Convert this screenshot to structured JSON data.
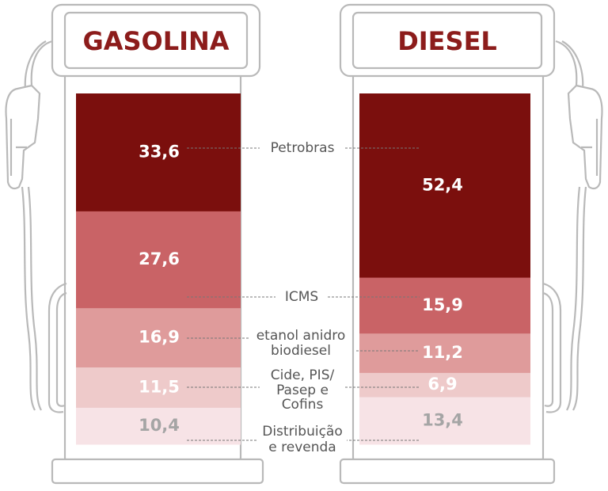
{
  "chart_data": {
    "type": "bar",
    "stacked": true,
    "percent": true,
    "categories": [
      "GASOLINA",
      "DIESEL"
    ],
    "series": [
      {
        "name": "Petrobras",
        "values": [
          33.6,
          52.4
        ],
        "color": "#7b0f0d",
        "text_color": "#ffffff"
      },
      {
        "name": "ICMS",
        "values": [
          27.6,
          15.9
        ],
        "color": "#c96366",
        "text_color": "#ffffff"
      },
      {
        "name": "etanol anidro / biodiesel",
        "values": [
          16.9,
          11.2
        ],
        "color": "#df9b9b",
        "text_color": "#ffffff"
      },
      {
        "name": "Cide, PIS/ Pasep e Cofins",
        "values": [
          11.5,
          6.9
        ],
        "color": "#eecaca",
        "text_color": "#ffffff"
      },
      {
        "name": "Distribuição e revenda",
        "values": [
          10.4,
          13.4
        ],
        "color": "#f7e3e6",
        "text_color": "#a5a5a5"
      }
    ],
    "value_labels": {
      "GASOLINA": [
        "33,6",
        "27,6",
        "16,9",
        "11,5",
        "10,4"
      ],
      "DIESEL": [
        "52,4",
        "15,9",
        "11,2",
        "6,9",
        "13,4"
      ]
    },
    "labels": {
      "petrobras": "Petrobras",
      "icms": "ICMS",
      "etanol": "etanol anidro",
      "biodiesel": "biodiesel",
      "cide_1": "Cide, PIS/",
      "cide_2": "Pasep e",
      "cide_3": "Cofins",
      "dist_1": "Distribuição",
      "dist_2": "e revenda"
    },
    "title_color": "#8c1c1b"
  }
}
